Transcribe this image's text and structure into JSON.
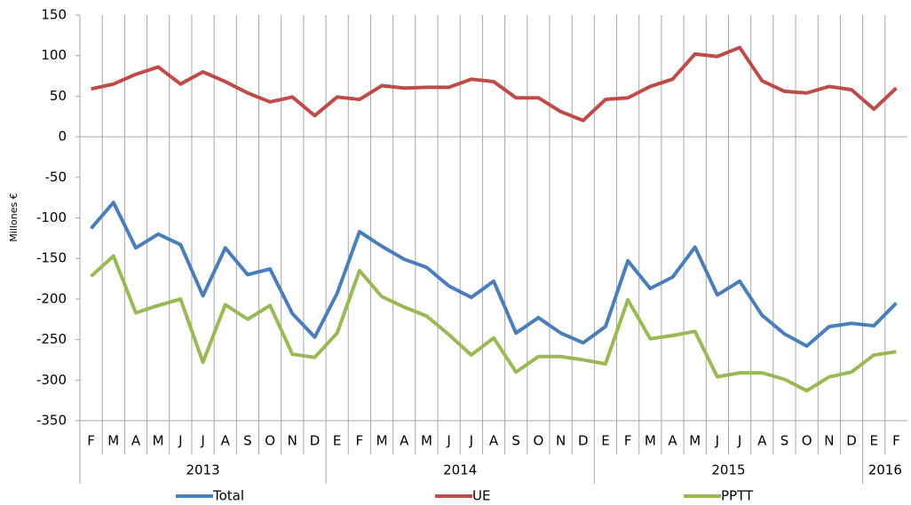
{
  "chart_data": {
    "type": "line",
    "y_label": "Millones €",
    "categories": [
      "F",
      "M",
      "A",
      "M",
      "J",
      "J",
      "A",
      "S",
      "O",
      "N",
      "D",
      "E",
      "F",
      "M",
      "A",
      "M",
      "J",
      "J",
      "A",
      "S",
      "O",
      "N",
      "D",
      "E",
      "F",
      "M",
      "A",
      "M",
      "J",
      "J",
      "A",
      "S",
      "O",
      "N",
      "D",
      "E",
      "F"
    ],
    "groups": [
      {
        "label": "2013",
        "count": 11
      },
      {
        "label": "2014",
        "count": 12
      },
      {
        "label": "2015",
        "count": 12
      },
      {
        "label": "2016",
        "count": 2
      }
    ],
    "series": [
      {
        "name": "Total",
        "color": "#4a7ebb",
        "values": [
          -113,
          -81,
          -137,
          -120,
          -133,
          -196,
          -137,
          -170,
          -163,
          -218,
          -247,
          -193,
          -117,
          -135,
          -151,
          -161,
          -184,
          -198,
          -178,
          -242,
          -223,
          -242,
          -254,
          -234,
          -153,
          -187,
          -173,
          -136,
          -195,
          -178,
          -220,
          -243,
          -258,
          -234,
          -230,
          -233,
          -205
        ]
      },
      {
        "name": "UE",
        "color": "#be4b48",
        "values": [
          59,
          65,
          77,
          86,
          65,
          80,
          68,
          54,
          43,
          49,
          26,
          49,
          46,
          63,
          60,
          61,
          61,
          71,
          68,
          48,
          48,
          31,
          20,
          46,
          48,
          62,
          71,
          102,
          99,
          110,
          69,
          56,
          54,
          62,
          58,
          34,
          60
        ]
      },
      {
        "name": "PPTT",
        "color": "#98b954",
        "values": [
          -172,
          -147,
          -217,
          -208,
          -200,
          -278,
          -207,
          -225,
          -208,
          -268,
          -272,
          -242,
          -165,
          -197,
          -210,
          -221,
          -244,
          -269,
          -248,
          -290,
          -271,
          -271,
          -275,
          -280,
          -201,
          -249,
          -245,
          -240,
          -296,
          -291,
          -291,
          -299,
          -313,
          -296,
          -290,
          -269,
          -265
        ]
      }
    ],
    "ylim": [
      -350,
      150
    ],
    "yticks": [
      -350,
      -300,
      -250,
      -200,
      -150,
      -100,
      -50,
      0,
      50,
      100,
      150
    ],
    "grid": false,
    "xgrid": true,
    "legend": "bottom"
  }
}
